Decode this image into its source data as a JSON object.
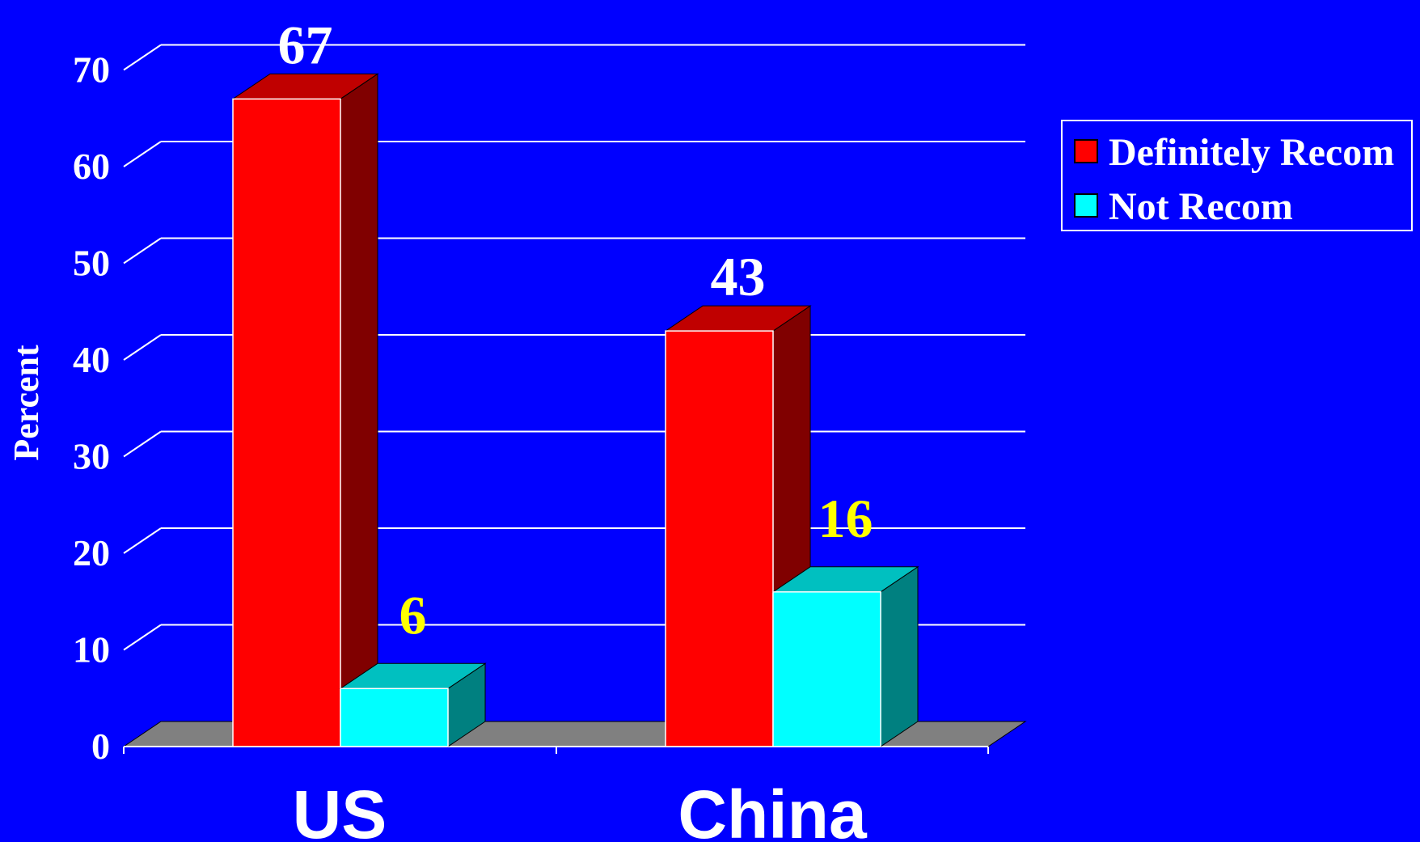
{
  "chart_data": {
    "type": "bar",
    "three_d": true,
    "categories": [
      "US",
      "China"
    ],
    "series": [
      {
        "name": "Definitely Recom",
        "values": [
          67,
          43
        ],
        "color": "#FF0000",
        "side_color": "#800000",
        "top_color": "#C00000",
        "label_color": "#FFFFFF",
        "value_labels": [
          "67",
          "43"
        ]
      },
      {
        "name": "Not Recom",
        "values": [
          6,
          16
        ],
        "color": "#00FFFF",
        "side_color": "#008080",
        "top_color": "#00C0C0",
        "label_color": "#FFFF00",
        "value_labels": [
          "6",
          "16"
        ]
      }
    ],
    "ylabel": "Percent",
    "xlabel": "",
    "ylim": [
      0,
      73
    ],
    "yticks": [
      "0",
      "10",
      "20",
      "30",
      "40",
      "50",
      "60",
      "70"
    ],
    "ytick_values": [
      0,
      10,
      20,
      30,
      40,
      50,
      60,
      70
    ],
    "grid": true,
    "legend_position": "right",
    "colors": {
      "background": "#0000FF",
      "floor": "#808080",
      "grid": "#FFFFFF",
      "text": "#FFFFFF"
    }
  }
}
